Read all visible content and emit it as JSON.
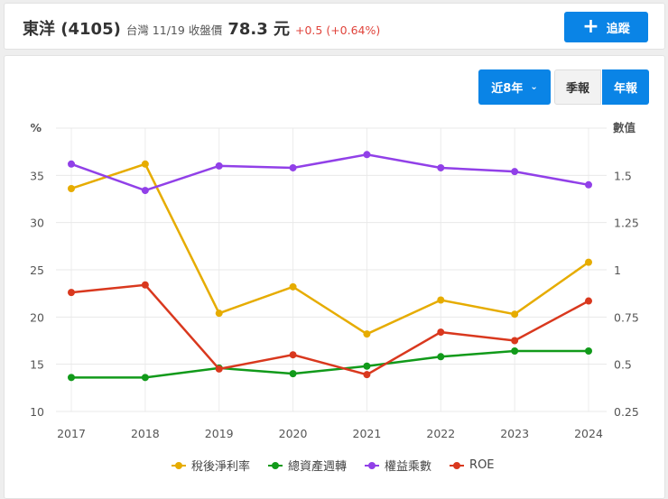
{
  "header": {
    "stock_name": "東洋 (4105)",
    "market_date": "台灣 11/19 收盤價",
    "price": "78.3 元",
    "change": "+0.5 (+0.64%)",
    "follow_label": "追蹤",
    "follow_icon": "plus-icon"
  },
  "controls": {
    "range_label": "近8年",
    "range_icon": "chevron-down-icon",
    "quarterly_label": "季報",
    "annual_label": "年報",
    "selected": "年報"
  },
  "colors": {
    "accent": "#0a84e6",
    "up": "#e0443c"
  },
  "chart_data": {
    "type": "line",
    "x": [
      "2017",
      "2018",
      "2019",
      "2020",
      "2021",
      "2022",
      "2023",
      "2024"
    ],
    "left_axis": {
      "label": "%",
      "ylim": [
        10,
        40
      ],
      "ticks": [
        "10",
        "15",
        "20",
        "25",
        "30",
        "35"
      ]
    },
    "right_axis": {
      "label": "數值",
      "ylim": [
        0.25,
        1.75
      ],
      "ticks": [
        "0.25",
        "0.5",
        "0.75",
        "1",
        "1.25",
        "1.5"
      ]
    },
    "grid": true,
    "legend_position": "bottom",
    "series": [
      {
        "name": "稅後淨利率",
        "axis": "left",
        "color": "#e6ac00",
        "values": [
          33.6,
          36.2,
          20.4,
          23.2,
          18.2,
          21.8,
          20.3,
          25.8
        ]
      },
      {
        "name": "總資產週轉",
        "axis": "right",
        "color": "#119a1a",
        "values": [
          0.43,
          0.43,
          0.48,
          0.45,
          0.49,
          0.54,
          0.57,
          0.57
        ]
      },
      {
        "name": "權益乘數",
        "axis": "right",
        "color": "#9140e8",
        "values": [
          1.56,
          1.42,
          1.55,
          1.54,
          1.61,
          1.54,
          1.52,
          1.45
        ]
      },
      {
        "name": "ROE",
        "axis": "left",
        "color": "#d9381e",
        "values": [
          22.6,
          23.4,
          14.5,
          16.0,
          13.9,
          18.4,
          17.5,
          21.7
        ]
      }
    ]
  }
}
